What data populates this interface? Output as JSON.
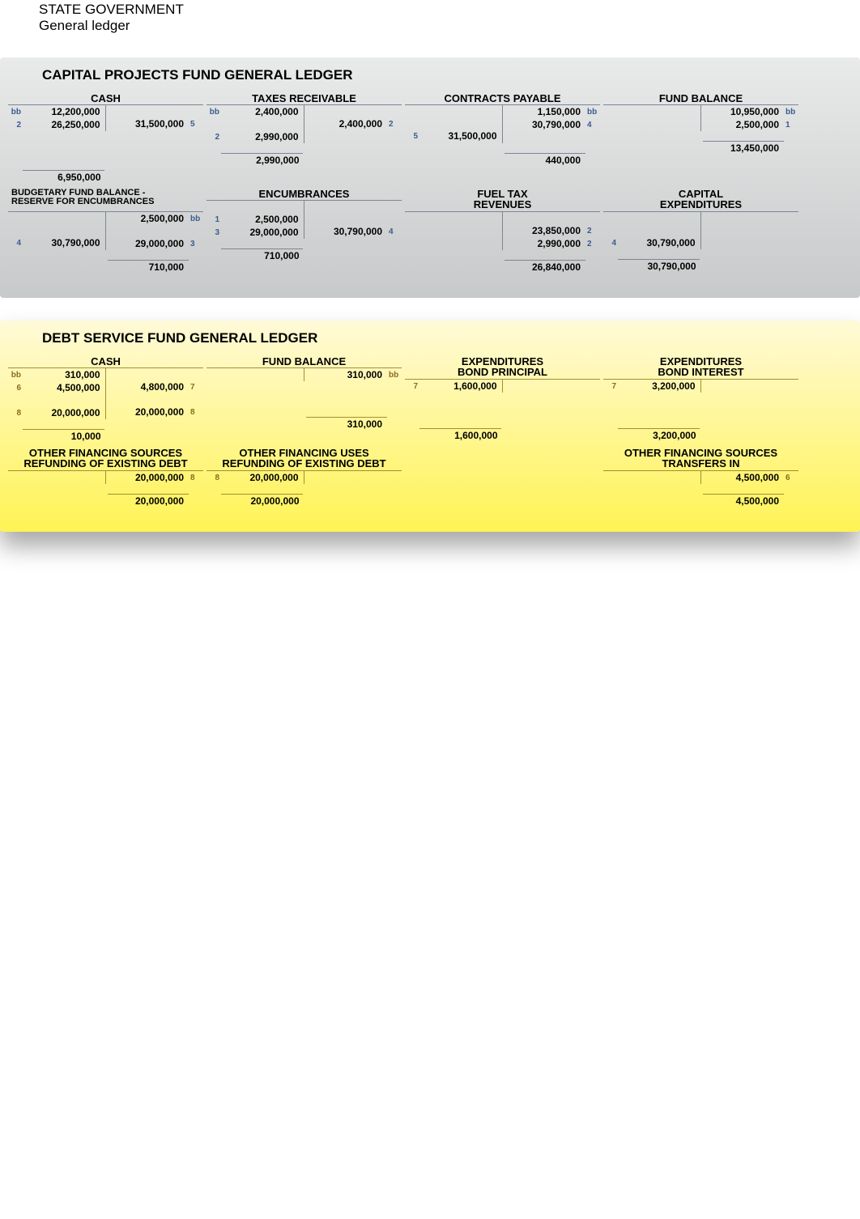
{
  "header": {
    "line1": "STATE GOVERNMENT",
    "line2": "General ledger"
  },
  "colors": {
    "grayRef": "#3a5c8f",
    "yellowRef": "#8a6d1e",
    "grayBorder": "#7d8691",
    "yellowBorder": "#a58d33",
    "grayBgTop": "#e9eaea",
    "grayBgBot": "#c8c9ca",
    "yellowBgTop": "#fffad8",
    "yellowBgBot": "#fff354"
  },
  "capital": {
    "title": "CAPITAL PROJECTS FUND GENERAL LEDGER",
    "accounts": [
      {
        "title": "CASH",
        "debits": [
          {
            "ref": "bb",
            "amt": "12,200,000"
          },
          {
            "ref": "2",
            "amt": "26,250,000"
          }
        ],
        "credits": [
          {
            "ref": "",
            "amt": "",
            "spacer": true
          },
          {
            "ref": "5",
            "amt": "31,500,000"
          }
        ],
        "debitTotal": "6,950,000",
        "tallGap": true
      },
      {
        "title": "TAXES RECEIVABLE",
        "debits": [
          {
            "ref": "bb",
            "amt": "2,400,000"
          },
          {
            "ref": "",
            "amt": "",
            "spacer": true
          },
          {
            "ref": "2",
            "amt": "2,990,000"
          }
        ],
        "credits": [
          {
            "ref": "",
            "amt": "",
            "spacer": true
          },
          {
            "ref": "2",
            "amt": "2,400,000"
          }
        ],
        "debitTotal": "2,990,000"
      },
      {
        "title": "CONTRACTS PAYABLE",
        "debits": [
          {
            "ref": "",
            "amt": "",
            "spacer": true
          },
          {
            "ref": "",
            "amt": "",
            "spacer": true
          },
          {
            "ref": "5",
            "amt": "31,500,000"
          }
        ],
        "credits": [
          {
            "ref": "bb",
            "amt": "1,150,000"
          },
          {
            "ref": "4",
            "amt": "30,790,000"
          }
        ],
        "creditTotal": "440,000"
      },
      {
        "title": "FUND BALANCE",
        "debits": [],
        "credits": [
          {
            "ref": "bb",
            "amt": "10,950,000"
          },
          {
            "ref": "1",
            "amt": "2,500,000"
          }
        ],
        "creditTotal": "13,450,000"
      },
      {
        "title": "BUDGETARY FUND BALANCE -",
        "title2": "RESERVE FOR ENCUMBRANCES",
        "smallTitle": true,
        "debits": [
          {
            "ref": "",
            "amt": "",
            "spacer": true
          },
          {
            "ref": "",
            "amt": "",
            "spacer": true
          },
          {
            "ref": "4",
            "amt": "30,790,000"
          }
        ],
        "credits": [
          {
            "ref": "bb",
            "amt": "2,500,000"
          },
          {
            "ref": "",
            "amt": "",
            "spacer": true
          },
          {
            "ref": "3",
            "amt": "29,000,000"
          }
        ],
        "creditTotal": "710,000"
      },
      {
        "title": "ENCUMBRANCES",
        "debits": [
          {
            "ref": "",
            "amt": "",
            "spacer": true
          },
          {
            "ref": "1",
            "amt": "2,500,000"
          },
          {
            "ref": "3",
            "amt": "29,000,000"
          }
        ],
        "credits": [
          {
            "ref": "",
            "amt": "",
            "spacer": true
          },
          {
            "ref": "",
            "amt": "",
            "spacer": true
          },
          {
            "ref": "4",
            "amt": "30,790,000"
          }
        ],
        "debitTotal": "710,000"
      },
      {
        "title": "FUEL TAX",
        "title2": "REVENUES",
        "debits": [],
        "credits": [
          {
            "ref": "",
            "amt": "",
            "spacer": true
          },
          {
            "ref": "2",
            "amt": "23,850,000"
          },
          {
            "ref": "2",
            "amt": "2,990,000"
          }
        ],
        "creditTotal": "26,840,000"
      },
      {
        "title": "CAPITAL",
        "title2": "EXPENDITURES",
        "debits": [
          {
            "ref": "",
            "amt": "",
            "spacer": true
          },
          {
            "ref": "",
            "amt": "",
            "spacer": true
          },
          {
            "ref": "4",
            "amt": "30,790,000"
          }
        ],
        "credits": [],
        "debitTotal": "30,790,000"
      }
    ]
  },
  "debt": {
    "title": "DEBT SERVICE FUND GENERAL LEDGER",
    "accounts": [
      {
        "title": "CASH",
        "debits": [
          {
            "ref": "bb",
            "amt": "310,000"
          },
          {
            "ref": "6",
            "amt": "4,500,000"
          },
          {
            "ref": "",
            "amt": "",
            "spacer": true
          },
          {
            "ref": "8",
            "amt": "20,000,000"
          }
        ],
        "credits": [
          {
            "ref": "",
            "amt": "",
            "spacer": true
          },
          {
            "ref": "7",
            "amt": "4,800,000"
          },
          {
            "ref": "",
            "amt": "",
            "spacer": true
          },
          {
            "ref": "8",
            "amt": "20,000,000"
          }
        ],
        "debitTotal": "10,000"
      },
      {
        "title": "FUND BALANCE",
        "debits": [],
        "credits": [
          {
            "ref": "bb",
            "amt": "310,000"
          }
        ],
        "creditTotal": "310,000",
        "tallGapBottom": true
      },
      {
        "title": "EXPENDITURES",
        "title2": "BOND PRINCIPAL",
        "debits": [
          {
            "ref": "7",
            "amt": "1,600,000"
          }
        ],
        "credits": [],
        "debitTotal": "1,600,000",
        "tallGapBottom": true
      },
      {
        "title": "EXPENDITURES",
        "title2": "BOND INTEREST",
        "debits": [
          {
            "ref": "7",
            "amt": "3,200,000"
          }
        ],
        "credits": [],
        "debitTotal": "3,200,000",
        "tallGapBottom": true
      },
      {
        "title": "OTHER FINANCING SOURCES",
        "title2": "REFUNDING OF EXISTING DEBT",
        "debits": [],
        "credits": [
          {
            "ref": "8",
            "amt": "20,000,000"
          }
        ],
        "creditTotal": "20,000,000"
      },
      {
        "title": "OTHER FINANCING USES",
        "title2": "REFUNDING OF EXISTING DEBT",
        "debits": [
          {
            "ref": "8",
            "amt": "20,000,000"
          }
        ],
        "credits": [],
        "debitTotal": "20,000,000"
      },
      {
        "title": "",
        "empty": true
      },
      {
        "title": "OTHER FINANCING SOURCES",
        "title2": "TRANSFERS IN",
        "debits": [],
        "credits": [
          {
            "ref": "6",
            "amt": "4,500,000"
          }
        ],
        "creditTotal": "4,500,000"
      }
    ]
  }
}
